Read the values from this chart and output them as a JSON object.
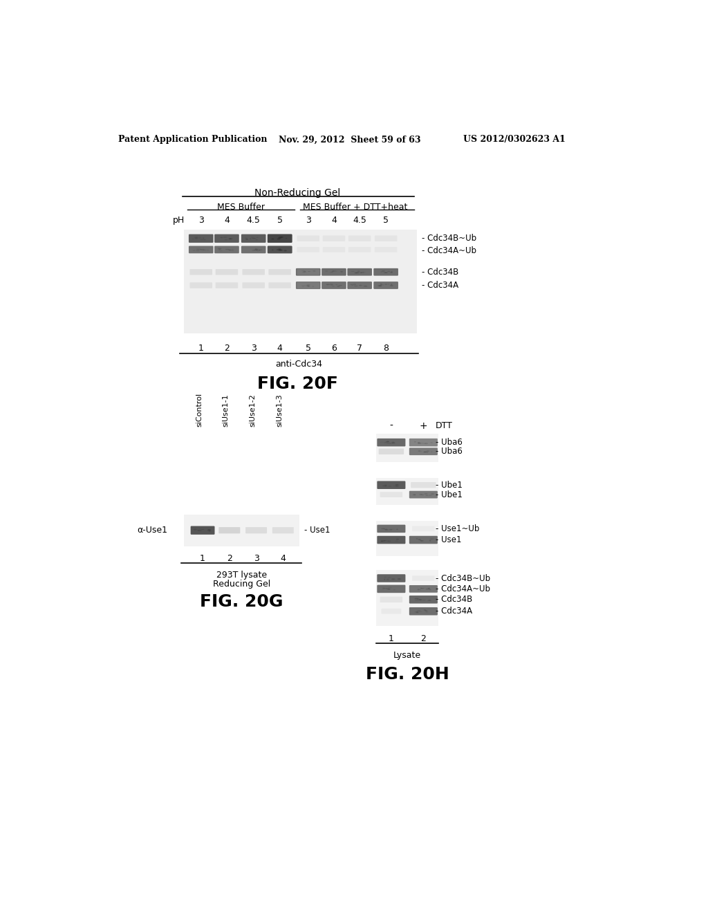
{
  "header_left": "Patent Application Publication",
  "header_center": "Nov. 29, 2012  Sheet 59 of 63",
  "header_right": "US 2012/0302623 A1",
  "fig20f": {
    "title": "Non-Reducing Gel",
    "label1": "MES Buffer",
    "label2": "MES Buffer + DTT+heat",
    "ph_label": "pH",
    "ph_values": [
      "3",
      "4",
      "4.5",
      "5",
      "3",
      "4",
      "4.5",
      "5"
    ],
    "lane_numbers": [
      "1",
      "2",
      "3",
      "4",
      "5",
      "6",
      "7",
      "8"
    ],
    "antibody_label": "anti-Cdc34",
    "fig_label": "FIG. 20F",
    "band_labels": [
      "- Cdc34B~Ub",
      "- Cdc34A~Ub",
      "- Cdc34B",
      "- Cdc34A"
    ]
  },
  "fig20g": {
    "col_labels": [
      "siControl",
      "siUse1-1",
      "siUse1-2",
      "siUse1-3"
    ],
    "row_label": "α-Use1",
    "band_label": "- Use1",
    "lane_numbers": [
      "1",
      "2",
      "3",
      "4"
    ],
    "bottom_label1": "293T lysate",
    "bottom_label2": "Reducing Gel",
    "fig_label": "FIG. 20G"
  },
  "fig20h": {
    "dtt_minus": "-",
    "dtt_plus": "+",
    "dtt_label": "DTT",
    "band_labels_uba6": [
      "- Uba6",
      "- Uba6"
    ],
    "band_labels_ube1": [
      "- Ube1",
      "- Ube1"
    ],
    "band_labels_use1": [
      "- Use1~Ub",
      "- Use1"
    ],
    "band_labels_cdc34": [
      "- Cdc34B~Ub",
      "- Cdc34A~Ub",
      "- Cdc34B",
      "- Cdc34A"
    ],
    "lane_numbers": [
      "1",
      "2"
    ],
    "bottom_label": "Lysate",
    "fig_label": "FIG. 20H"
  }
}
